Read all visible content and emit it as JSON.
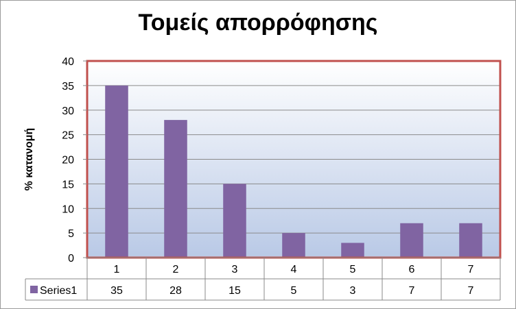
{
  "chart_data": {
    "type": "bar",
    "title": "Τομείς απορρόφησης",
    "xlabel": "",
    "ylabel": "% κατανομή",
    "categories": [
      "1",
      "2",
      "3",
      "4",
      "5",
      "6",
      "7"
    ],
    "series": [
      {
        "name": "Series1",
        "values": [
          35,
          28,
          15,
          5,
          3,
          7,
          7
        ],
        "color": "#8064a2"
      }
    ],
    "ylim": [
      0,
      40
    ],
    "yticks": [
      0,
      5,
      10,
      15,
      20,
      25,
      30,
      35,
      40
    ],
    "grid": true,
    "data_table": true,
    "plot_border_color": "#c0504d",
    "plot_gradient": [
      "#ffffff",
      "#b9c9e6"
    ]
  }
}
